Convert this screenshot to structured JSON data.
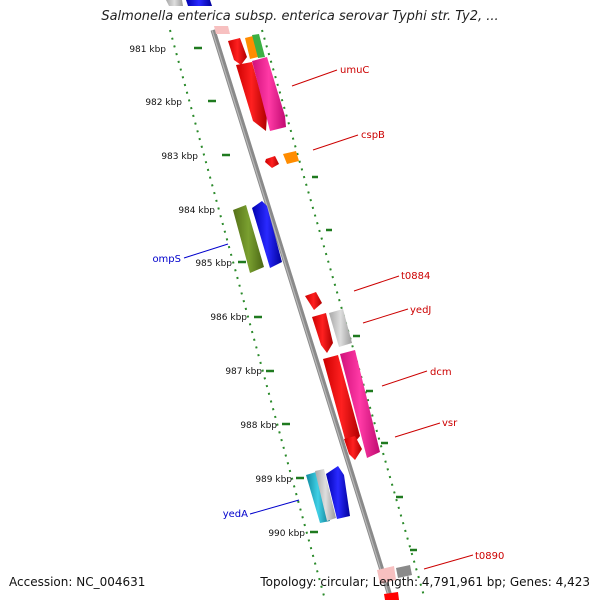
{
  "title": "Salmonella enterica subsp. enterica serovar Typhi str. Ty2, ...",
  "footer": {
    "accession": "Accession: NC_004631",
    "summary": "Topology: circular; Length: 4,791,961 bp; Genes: 4,423"
  },
  "ticks": [
    "981 kbp",
    "982 kbp",
    "983 kbp",
    "984 kbp",
    "985 kbp",
    "986 kbp",
    "987 kbp",
    "988 kbp",
    "989 kbp",
    "990 kbp"
  ],
  "gene_labels": {
    "umuC": "umuC",
    "cspB": "cspB",
    "ompS": "ompS",
    "t0884": "t0884",
    "yedJ": "yedJ",
    "dcm": "dcm",
    "vsr": "vsr",
    "yedA": "yedA",
    "t0890": "t0890"
  },
  "colors": {
    "backbone": "#8a8a8a",
    "ruler": "#2a8a2a",
    "forward_label": "#cc0000",
    "reverse_label": "#0000cc",
    "red": "#ff0000",
    "magenta": "#ff1493",
    "orange": "#ff8c00",
    "green": "#3cb043",
    "olive": "#6b8e23",
    "blue": "#0000ff",
    "gray": "#c0c0c0",
    "cyan": "#20b2c8"
  }
}
